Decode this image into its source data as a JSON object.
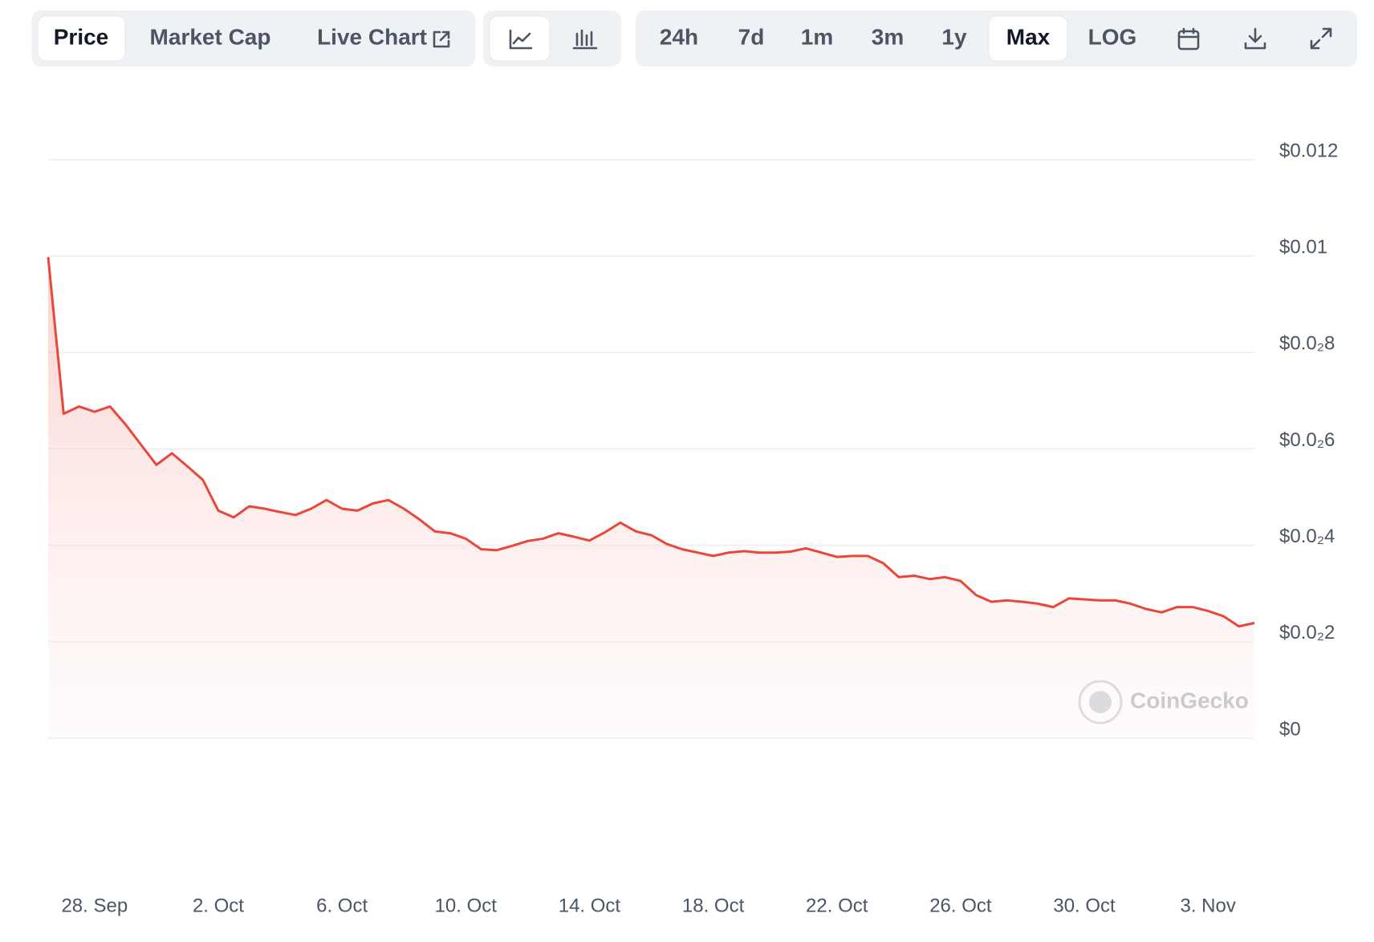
{
  "toolbar": {
    "tabs": [
      "Price",
      "Market Cap",
      "Live Chart"
    ],
    "ranges": [
      "24h",
      "7d",
      "1m",
      "3m",
      "1y",
      "Max",
      "LOG"
    ],
    "active_tab": "Price",
    "active_range": "Max"
  },
  "watermark": "CoinGecko",
  "chart_data": {
    "type": "line",
    "categories": [
      null,
      null,
      null,
      "28. Sep",
      null,
      null,
      null,
      null,
      null,
      null,
      null,
      "2. Oct",
      null,
      null,
      null,
      null,
      null,
      null,
      null,
      "6. Oct",
      null,
      null,
      null,
      null,
      null,
      null,
      null,
      "10. Oct",
      null,
      null,
      null,
      null,
      null,
      null,
      null,
      "14. Oct",
      null,
      null,
      null,
      null,
      null,
      null,
      null,
      "18. Oct",
      null,
      null,
      null,
      null,
      null,
      null,
      null,
      "22. Oct",
      null,
      null,
      null,
      null,
      null,
      null,
      null,
      "26. Oct",
      null,
      null,
      null,
      null,
      null,
      null,
      null,
      "30. Oct",
      null,
      null,
      null,
      null,
      null,
      null,
      null,
      "3. Nov",
      null,
      null,
      null
    ],
    "series": [
      {
        "name": "Price",
        "color": "#e9473a",
        "values": [
          0.00998,
          0.00673,
          0.00688,
          0.00677,
          0.00688,
          0.00651,
          0.00609,
          0.00567,
          0.00591,
          0.00564,
          0.00536,
          0.00472,
          0.00458,
          0.00481,
          0.00476,
          0.00469,
          0.00463,
          0.00476,
          0.00494,
          0.00476,
          0.00472,
          0.00487,
          0.00494,
          0.00476,
          0.00454,
          0.00429,
          0.00425,
          0.00414,
          0.00392,
          0.0039,
          0.00399,
          0.00409,
          0.00414,
          0.00425,
          0.00418,
          0.0041,
          0.00427,
          0.00447,
          0.00429,
          0.00421,
          0.00403,
          0.00392,
          0.00385,
          0.00378,
          0.00385,
          0.00388,
          0.00385,
          0.00385,
          0.00387,
          0.00394,
          0.00385,
          0.00376,
          0.00378,
          0.00378,
          0.00363,
          0.00334,
          0.00337,
          0.0033,
          0.00334,
          0.00326,
          0.00297,
          0.00283,
          0.00286,
          0.00283,
          0.00279,
          0.00272,
          0.0029,
          0.00288,
          0.00286,
          0.00286,
          0.00279,
          0.00268,
          0.00261,
          0.00272,
          0.00272,
          0.00264,
          0.00253,
          0.00232,
          0.00239
        ]
      }
    ],
    "ylim": [
      0,
      0.012
    ],
    "yticks": [
      {
        "value": 0,
        "label": "$0"
      },
      {
        "value": 0.002,
        "label": "$0.0₂2"
      },
      {
        "value": 0.004,
        "label": "$0.0₂4"
      },
      {
        "value": 0.006,
        "label": "$0.0₂6"
      },
      {
        "value": 0.008,
        "label": "$0.0₂8"
      },
      {
        "value": 0.01,
        "label": "$0.01"
      },
      {
        "value": 0.012,
        "label": "$0.012"
      }
    ],
    "grid": true
  }
}
